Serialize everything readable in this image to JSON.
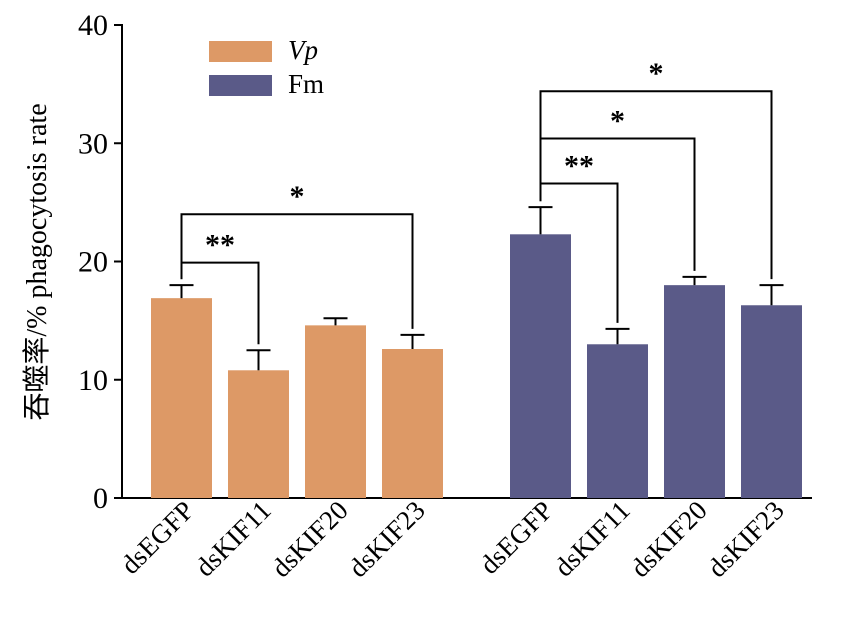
{
  "chart_data": {
    "type": "bar",
    "title": "",
    "xlabel": "",
    "ylabel": "吞噬率/% phagocytosis rate",
    "ylim": [
      0,
      40
    ],
    "yticks": [
      0,
      10,
      20,
      30,
      40
    ],
    "grid": false,
    "legend_placement": "top-left",
    "categories": [
      "dsEGFP",
      "dsKIF11",
      "dsKIF20",
      "dsKIF23"
    ],
    "series": [
      {
        "name": "Vp",
        "color": "#DD9966",
        "values": [
          16.9,
          10.8,
          14.6,
          12.6
        ],
        "errors": [
          1.1,
          1.7,
          0.6,
          1.2
        ]
      },
      {
        "name": "Fm",
        "color": "#5A5A88",
        "values": [
          22.3,
          13.0,
          18.0,
          16.3
        ],
        "errors": [
          2.3,
          1.3,
          0.7,
          1.7
        ]
      }
    ],
    "significance": [
      {
        "series": 0,
        "from": 0,
        "to": 1,
        "label": "**",
        "level": 19.9
      },
      {
        "series": 0,
        "from": 0,
        "to": 3,
        "label": "*",
        "level": 24.0
      },
      {
        "series": 1,
        "from": 0,
        "to": 1,
        "label": "**",
        "level": 26.6
      },
      {
        "series": 1,
        "from": 0,
        "to": 2,
        "label": "*",
        "level": 30.4
      },
      {
        "series": 1,
        "from": 0,
        "to": 3,
        "label": "*",
        "level": 34.4
      }
    ]
  }
}
